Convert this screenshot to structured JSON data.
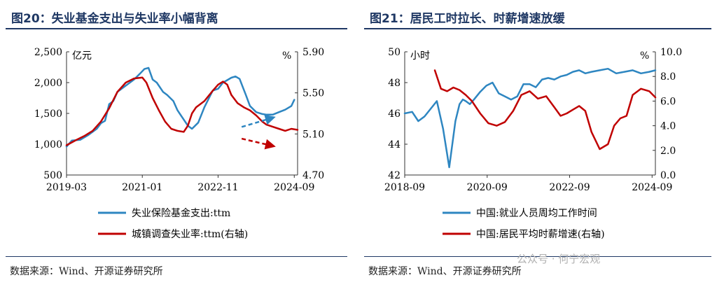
{
  "left": {
    "title": "图20：失业基金支出与失业率小幅背离",
    "source": "数据来源：Wind、开源证券研究所"
  },
  "right": {
    "title": "图21：居民工时拉长、时薪增速放缓",
    "source": "数据来源：Wind、开源证券研究所"
  },
  "watermark": "公众号 · 何宁宏观",
  "chart_data": [
    {
      "type": "line",
      "left_unit": "亿元",
      "right_unit": "%",
      "left_ylim": [
        500,
        2500
      ],
      "left_ticks": [
        "500",
        "1,000",
        "1,500",
        "2,000",
        "2,500"
      ],
      "left_tick_values": [
        500,
        1000,
        1500,
        2000,
        2500
      ],
      "right_ylim": [
        4.7,
        5.9
      ],
      "right_ticks": [
        "4.70",
        "5.10",
        "5.50",
        "5.90"
      ],
      "right_tick_values": [
        4.7,
        5.1,
        5.5,
        5.9
      ],
      "xlim": [
        2019.17,
        2024.75
      ],
      "x_ticks": [
        "2019-03",
        "2021-01",
        "2022-11",
        "2024-09"
      ],
      "x_tick_values": [
        2019.17,
        2021.0,
        2022.83,
        2024.67
      ],
      "series": [
        {
          "name": "失业保险基金支出:ttm",
          "axis": "left",
          "color": "#2e86c1",
          "x": [
            2019.17,
            2019.3,
            2019.5,
            2019.7,
            2019.9,
            2020.0,
            2020.1,
            2020.2,
            2020.3,
            2020.4,
            2020.6,
            2020.8,
            2020.95,
            2021.05,
            2021.15,
            2021.25,
            2021.35,
            2021.5,
            2021.6,
            2021.75,
            2021.85,
            2022.0,
            2022.1,
            2022.2,
            2022.35,
            2022.5,
            2022.7,
            2022.83,
            2022.95,
            2023.05,
            2023.15,
            2023.25,
            2023.35,
            2023.5,
            2023.6,
            2023.75,
            2023.9,
            2024.0,
            2024.15,
            2024.3,
            2024.45,
            2024.6,
            2024.67
          ],
          "values": [
            960,
            1060,
            1070,
            1150,
            1250,
            1340,
            1380,
            1650,
            1700,
            1850,
            1950,
            2050,
            2150,
            2220,
            2240,
            2050,
            2000,
            1850,
            1800,
            1700,
            1550,
            1400,
            1300,
            1250,
            1350,
            1600,
            1870,
            1900,
            2000,
            2040,
            2080,
            2100,
            2060,
            1800,
            1620,
            1520,
            1490,
            1480,
            1480,
            1520,
            1560,
            1620,
            1720
          ]
        },
        {
          "name": "城镇调查失业率:ttm(右轴)",
          "axis": "right",
          "color": "#c00000",
          "x": [
            2019.17,
            2019.4,
            2019.6,
            2019.8,
            2020.0,
            2020.2,
            2020.4,
            2020.6,
            2020.8,
            2021.0,
            2021.1,
            2021.25,
            2021.4,
            2021.55,
            2021.7,
            2021.85,
            2022.0,
            2022.1,
            2022.2,
            2022.3,
            2022.5,
            2022.7,
            2022.83,
            2022.95,
            2023.05,
            2023.15,
            2023.3,
            2023.45,
            2023.6,
            2023.75,
            2023.9,
            2024.0,
            2024.15,
            2024.3,
            2024.45,
            2024.6,
            2024.75
          ],
          "values": [
            4.99,
            5.04,
            5.08,
            5.13,
            5.22,
            5.35,
            5.51,
            5.6,
            5.64,
            5.65,
            5.6,
            5.45,
            5.33,
            5.22,
            5.15,
            5.13,
            5.12,
            5.18,
            5.3,
            5.36,
            5.42,
            5.52,
            5.58,
            5.61,
            5.58,
            5.48,
            5.4,
            5.36,
            5.33,
            5.28,
            5.22,
            5.19,
            5.17,
            5.15,
            5.13,
            5.15,
            5.14
          ]
        }
      ],
      "annotations": [
        {
          "type": "arrow",
          "axis": "left",
          "color": "#2e86c1",
          "from": [
            2023.4,
            1280
          ],
          "to": [
            2024.1,
            1420
          ]
        },
        {
          "type": "arrow",
          "axis": "left",
          "color": "#c00000",
          "from": [
            2023.4,
            1090
          ],
          "to": [
            2024.1,
            980
          ]
        }
      ]
    },
    {
      "type": "line",
      "left_unit": "小时",
      "right_unit": "%",
      "left_ylim": [
        42,
        50
      ],
      "left_ticks": [
        "42",
        "44",
        "46",
        "48",
        "50"
      ],
      "left_tick_values": [
        42,
        44,
        46,
        48,
        50
      ],
      "right_ylim": [
        0,
        10
      ],
      "right_ticks": [
        "0.0",
        "2.0",
        "4.0",
        "6.0",
        "8.0",
        "10.0"
      ],
      "right_tick_values": [
        0,
        2,
        4,
        6,
        8,
        10
      ],
      "xlim": [
        2018.67,
        2024.75
      ],
      "x_ticks": [
        "2018-09",
        "2020-09",
        "2022-09",
        "2024-09"
      ],
      "x_tick_values": [
        2018.67,
        2020.67,
        2022.67,
        2024.67
      ],
      "series": [
        {
          "name": "中国:就业人员周均工作时间",
          "axis": "left",
          "color": "#2e86c1",
          "x": [
            2018.67,
            2018.85,
            2019.0,
            2019.15,
            2019.3,
            2019.45,
            2019.6,
            2019.75,
            2019.9,
            2020.0,
            2020.08,
            2020.15,
            2020.25,
            2020.35,
            2020.5,
            2020.65,
            2020.8,
            2020.95,
            2021.1,
            2021.25,
            2021.4,
            2021.55,
            2021.7,
            2021.85,
            2022.0,
            2022.15,
            2022.3,
            2022.45,
            2022.6,
            2022.75,
            2022.9,
            2023.05,
            2023.2,
            2023.4,
            2023.6,
            2023.8,
            2024.0,
            2024.2,
            2024.4,
            2024.6,
            2024.75
          ],
          "values": [
            46.0,
            46.1,
            45.5,
            45.8,
            46.3,
            46.8,
            45.0,
            42.5,
            45.5,
            46.6,
            46.9,
            46.8,
            46.6,
            46.9,
            47.4,
            47.8,
            48.0,
            47.3,
            47.1,
            46.9,
            47.1,
            47.9,
            47.9,
            47.7,
            48.2,
            48.3,
            48.2,
            48.4,
            48.5,
            48.7,
            48.8,
            48.6,
            48.7,
            48.8,
            48.9,
            48.6,
            48.7,
            48.8,
            48.6,
            48.7,
            48.8
          ]
        },
        {
          "name": "中国:居民平均时薪增速(右轴)",
          "axis": "right",
          "color": "#c00000",
          "x": [
            2019.4,
            2019.55,
            2019.7,
            2019.85,
            2020.0,
            2020.15,
            2020.3,
            2020.5,
            2020.7,
            2020.9,
            2021.1,
            2021.3,
            2021.5,
            2021.7,
            2021.9,
            2022.1,
            2022.3,
            2022.45,
            2022.6,
            2022.75,
            2022.9,
            2023.05,
            2023.2,
            2023.4,
            2023.6,
            2023.75,
            2023.9,
            2024.05,
            2024.2,
            2024.4,
            2024.6,
            2024.75
          ],
          "values": [
            8.5,
            7.0,
            6.8,
            7.1,
            6.9,
            6.5,
            6.0,
            5.0,
            4.2,
            4.0,
            4.3,
            5.2,
            6.5,
            6.8,
            6.2,
            6.4,
            5.5,
            4.8,
            5.0,
            5.3,
            5.6,
            5.2,
            3.5,
            2.1,
            2.5,
            4.0,
            4.6,
            4.8,
            6.5,
            7.0,
            6.8,
            6.3
          ]
        }
      ]
    }
  ]
}
